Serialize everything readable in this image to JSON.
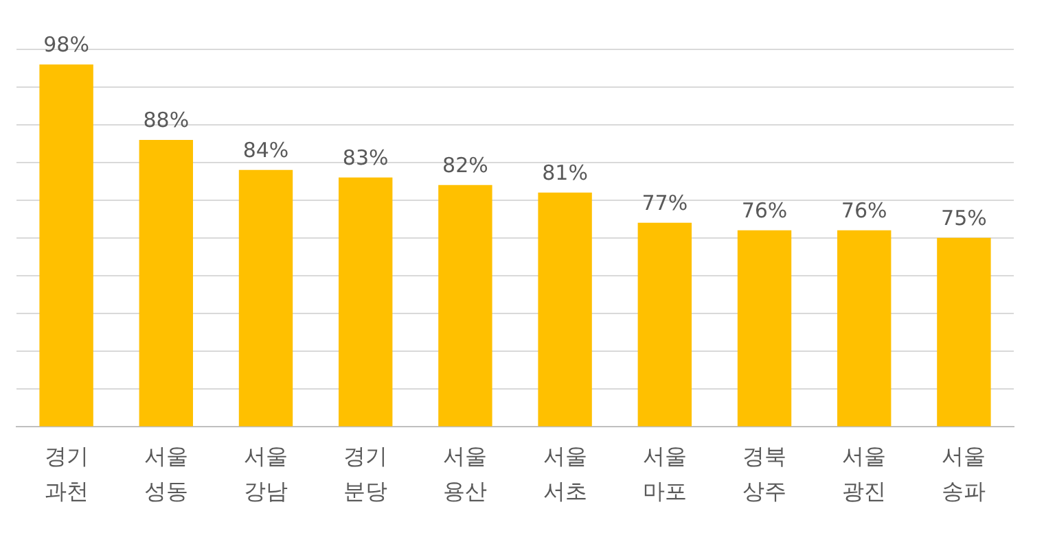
{
  "chart_data": {
    "type": "bar",
    "categories": [
      "경기 과천",
      "서울 성동",
      "서울 강남",
      "경기 분당",
      "서울 용산",
      "서울 서초",
      "서울 마포",
      "경북 상주",
      "서울 광진",
      "서울 송파"
    ],
    "values": [
      98,
      88,
      84,
      83,
      82,
      81,
      77,
      76,
      76,
      75
    ],
    "color": "#ffc000",
    "value_labels": [
      "98%",
      "88%",
      "84%",
      "83%",
      "82%",
      "81%",
      "77%",
      "76%",
      "76%",
      "75%"
    ],
    "ylim": [
      50,
      100
    ],
    "yticks": [
      {
        "value": 50,
        "label": null
      },
      {
        "value": 55,
        "label": null
      },
      {
        "value": 60,
        "label": null
      },
      {
        "value": 65,
        "label": null
      },
      {
        "value": 70,
        "label": null
      },
      {
        "value": 75,
        "label": null
      },
      {
        "value": 80,
        "label": null
      },
      {
        "value": 85,
        "label": null
      },
      {
        "value": 90,
        "label": null
      },
      {
        "value": 95,
        "label": null
      },
      {
        "value": 100,
        "label": null
      }
    ],
    "tick_labels": "x",
    "grid": "y",
    "legend": false
  }
}
